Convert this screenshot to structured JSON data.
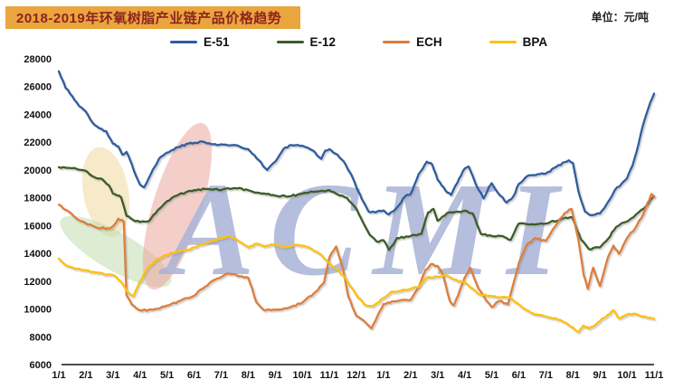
{
  "header": {
    "title": "2018-2019年环氧树脂产业链产品价格趋势",
    "unit_label": "单位：元/吨",
    "title_bg_color": "#e9a53e",
    "title_text_color": "#8e2320"
  },
  "watermark": {
    "text": "ACMI",
    "color": "#a9b3d7"
  },
  "decorations": {
    "petal_yellow": "#f0d9a0",
    "leaf_green": "#bcd9a5",
    "ribbon_pink": "#eba89e"
  },
  "chart_data": {
    "type": "line",
    "title": "2018-2019年环氧树脂产业链产品价格趋势",
    "unit": "元/吨",
    "grid": false,
    "legend_position": "top",
    "xlabel": "",
    "ylabel": "",
    "ylim": [
      6000,
      28000
    ],
    "y_tick_step": 2000,
    "y_ticks": [
      28000,
      26000,
      24000,
      22000,
      20000,
      18000,
      16000,
      14000,
      12000,
      10000,
      8000,
      6000
    ],
    "x_tick_labels": [
      "1/1",
      "2/1",
      "3/1",
      "4/1",
      "5/1",
      "6/1",
      "7/1",
      "8/1",
      "9/1",
      "10/1",
      "11/1",
      "12/1",
      "1/1",
      "2/1",
      "3/1",
      "4/1",
      "5/1",
      "6/1",
      "7/1",
      "8/1",
      "9/1",
      "10/1",
      "11/1"
    ],
    "x_note": "month index 0 = 2018-01-01, 22 = 2019-11-01; series points are [month_index, price]",
    "series": [
      {
        "name": "E-51",
        "color": "#2d5d9f",
        "points": [
          [
            0,
            27100
          ],
          [
            0.25,
            25900
          ],
          [
            0.5,
            25300
          ],
          [
            0.75,
            24600
          ],
          [
            1,
            24200
          ],
          [
            1.25,
            23400
          ],
          [
            1.5,
            23000
          ],
          [
            1.75,
            22800
          ],
          [
            2,
            21900
          ],
          [
            2.2,
            21700
          ],
          [
            2.35,
            21100
          ],
          [
            2.5,
            21300
          ],
          [
            2.7,
            20400
          ],
          [
            2.85,
            19600
          ],
          [
            3,
            18950
          ],
          [
            3.15,
            18750
          ],
          [
            3.4,
            19700
          ],
          [
            3.7,
            20800
          ],
          [
            4,
            21250
          ],
          [
            4.4,
            21650
          ],
          [
            4.8,
            21900
          ],
          [
            5,
            21950
          ],
          [
            5.3,
            22050
          ],
          [
            5.7,
            21850
          ],
          [
            6,
            21850
          ],
          [
            6.5,
            21800
          ],
          [
            7,
            21500
          ],
          [
            7.4,
            20700
          ],
          [
            7.7,
            20000
          ],
          [
            8,
            20600
          ],
          [
            8.3,
            21500
          ],
          [
            8.6,
            21800
          ],
          [
            9,
            21750
          ],
          [
            9.4,
            21400
          ],
          [
            9.7,
            20800
          ],
          [
            9.85,
            21400
          ],
          [
            10,
            21500
          ],
          [
            10.3,
            21100
          ],
          [
            10.6,
            20400
          ],
          [
            10.8,
            19700
          ],
          [
            11,
            18750
          ],
          [
            11.2,
            17900
          ],
          [
            11.45,
            17000
          ],
          [
            11.7,
            16950
          ],
          [
            12,
            17100
          ],
          [
            12.2,
            16800
          ],
          [
            12.5,
            17300
          ],
          [
            12.8,
            18100
          ],
          [
            13,
            18250
          ],
          [
            13.3,
            19700
          ],
          [
            13.6,
            20600
          ],
          [
            13.8,
            20400
          ],
          [
            14,
            19300
          ],
          [
            14.3,
            18500
          ],
          [
            14.5,
            18200
          ],
          [
            14.8,
            19400
          ],
          [
            15,
            20100
          ],
          [
            15.15,
            20250
          ],
          [
            15.45,
            18800
          ],
          [
            15.7,
            17950
          ],
          [
            15.9,
            18800
          ],
          [
            16,
            19050
          ],
          [
            16.25,
            18300
          ],
          [
            16.55,
            17650
          ],
          [
            16.8,
            18100
          ],
          [
            17,
            19000
          ],
          [
            17.3,
            19550
          ],
          [
            17.7,
            19700
          ],
          [
            18,
            19750
          ],
          [
            18.4,
            20250
          ],
          [
            18.85,
            20700
          ],
          [
            19,
            20500
          ],
          [
            19.2,
            18500
          ],
          [
            19.45,
            17000
          ],
          [
            19.65,
            16750
          ],
          [
            20,
            16870
          ],
          [
            20.3,
            17700
          ],
          [
            20.55,
            18550
          ],
          [
            20.8,
            19000
          ],
          [
            21,
            19400
          ],
          [
            21.2,
            20300
          ],
          [
            21.35,
            21300
          ],
          [
            21.5,
            22500
          ],
          [
            21.65,
            23600
          ],
          [
            21.8,
            24500
          ],
          [
            21.92,
            25100
          ],
          [
            22,
            25500
          ]
        ]
      },
      {
        "name": "E-12",
        "color": "#3d5b27",
        "points": [
          [
            0,
            20200
          ],
          [
            0.4,
            20150
          ],
          [
            0.8,
            20000
          ],
          [
            1,
            19950
          ],
          [
            1.3,
            19500
          ],
          [
            1.6,
            19350
          ],
          [
            1.85,
            18900
          ],
          [
            2,
            18300
          ],
          [
            2.3,
            18050
          ],
          [
            2.5,
            16700
          ],
          [
            2.75,
            16400
          ],
          [
            3,
            16250
          ],
          [
            3.35,
            16350
          ],
          [
            3.65,
            17100
          ],
          [
            4,
            17750
          ],
          [
            4.35,
            18150
          ],
          [
            4.7,
            18400
          ],
          [
            5,
            18550
          ],
          [
            5.5,
            18650
          ],
          [
            6,
            18550
          ],
          [
            6.5,
            18700
          ],
          [
            7,
            18550
          ],
          [
            7.5,
            18300
          ],
          [
            8,
            18150
          ],
          [
            8.5,
            18100
          ],
          [
            9,
            18300
          ],
          [
            9.5,
            18450
          ],
          [
            10,
            18550
          ],
          [
            10.3,
            18250
          ],
          [
            10.65,
            18000
          ],
          [
            11,
            17200
          ],
          [
            11.25,
            16200
          ],
          [
            11.5,
            15300
          ],
          [
            11.75,
            14850
          ],
          [
            12,
            14950
          ],
          [
            12.2,
            14250
          ],
          [
            12.5,
            15100
          ],
          [
            13,
            15250
          ],
          [
            13.4,
            15400
          ],
          [
            13.65,
            16950
          ],
          [
            13.85,
            17200
          ],
          [
            14,
            16350
          ],
          [
            14.35,
            16900
          ],
          [
            14.7,
            17000
          ],
          [
            15,
            17070
          ],
          [
            15.3,
            16870
          ],
          [
            15.6,
            15400
          ],
          [
            16,
            15250
          ],
          [
            16.4,
            15250
          ],
          [
            16.7,
            14960
          ],
          [
            16.9,
            15800
          ],
          [
            17,
            16150
          ],
          [
            17.5,
            16100
          ],
          [
            18,
            16150
          ],
          [
            18.5,
            16400
          ],
          [
            18.9,
            16600
          ],
          [
            19,
            16500
          ],
          [
            19.3,
            15000
          ],
          [
            19.6,
            14300
          ],
          [
            20,
            14430
          ],
          [
            20.3,
            15050
          ],
          [
            20.6,
            15900
          ],
          [
            21,
            16300
          ],
          [
            21.4,
            16900
          ],
          [
            21.7,
            17400
          ],
          [
            22,
            18100
          ]
        ]
      },
      {
        "name": "ECH",
        "color": "#dd7e3a",
        "points": [
          [
            0,
            17500
          ],
          [
            0.3,
            17100
          ],
          [
            0.6,
            16600
          ],
          [
            1,
            16150
          ],
          [
            1.4,
            15850
          ],
          [
            1.8,
            15800
          ],
          [
            2,
            15950
          ],
          [
            2.2,
            16500
          ],
          [
            2.4,
            16300
          ],
          [
            2.5,
            11000
          ],
          [
            2.7,
            10300
          ],
          [
            3,
            9900
          ],
          [
            3.5,
            9950
          ],
          [
            4,
            10250
          ],
          [
            4.5,
            10600
          ],
          [
            5,
            10950
          ],
          [
            5.4,
            11600
          ],
          [
            5.7,
            12050
          ],
          [
            6,
            12300
          ],
          [
            6.3,
            12550
          ],
          [
            6.7,
            12350
          ],
          [
            7,
            12250
          ],
          [
            7.3,
            10500
          ],
          [
            7.6,
            9900
          ],
          [
            8,
            9950
          ],
          [
            8.5,
            10100
          ],
          [
            9,
            10450
          ],
          [
            9.5,
            11250
          ],
          [
            9.8,
            11900
          ],
          [
            10,
            13700
          ],
          [
            10.25,
            14500
          ],
          [
            10.5,
            12900
          ],
          [
            10.7,
            10900
          ],
          [
            11,
            9500
          ],
          [
            11.3,
            9100
          ],
          [
            11.55,
            8600
          ],
          [
            11.8,
            9600
          ],
          [
            12,
            10350
          ],
          [
            12.4,
            10550
          ],
          [
            13,
            10650
          ],
          [
            13.3,
            11600
          ],
          [
            13.55,
            12800
          ],
          [
            13.75,
            13230
          ],
          [
            14,
            13100
          ],
          [
            14.2,
            12450
          ],
          [
            14.45,
            10590
          ],
          [
            14.6,
            10260
          ],
          [
            15,
            12250
          ],
          [
            15.2,
            12980
          ],
          [
            15.5,
            11500
          ],
          [
            15.8,
            10590
          ],
          [
            16,
            10130
          ],
          [
            16.3,
            10590
          ],
          [
            16.6,
            10330
          ],
          [
            16.9,
            12500
          ],
          [
            17,
            13300
          ],
          [
            17.3,
            14630
          ],
          [
            17.6,
            15100
          ],
          [
            18,
            14900
          ],
          [
            18.35,
            15950
          ],
          [
            18.7,
            16900
          ],
          [
            18.95,
            17200
          ],
          [
            19.2,
            15000
          ],
          [
            19.4,
            12450
          ],
          [
            19.55,
            11450
          ],
          [
            19.75,
            12980
          ],
          [
            20,
            11650
          ],
          [
            20.3,
            13760
          ],
          [
            20.5,
            14560
          ],
          [
            20.7,
            13960
          ],
          [
            21,
            15100
          ],
          [
            21.3,
            15800
          ],
          [
            21.6,
            16800
          ],
          [
            21.9,
            18270
          ],
          [
            22,
            18100
          ]
        ]
      },
      {
        "name": "BPA",
        "color": "#fdc108",
        "points": [
          [
            0,
            13630
          ],
          [
            0.3,
            13100
          ],
          [
            0.6,
            12900
          ],
          [
            1,
            12780
          ],
          [
            1.5,
            12600
          ],
          [
            2,
            12450
          ],
          [
            2.3,
            11980
          ],
          [
            2.55,
            11200
          ],
          [
            2.75,
            10920
          ],
          [
            3,
            11980
          ],
          [
            3.3,
            12980
          ],
          [
            3.6,
            13560
          ],
          [
            4,
            13890
          ],
          [
            4.35,
            14100
          ],
          [
            4.7,
            14230
          ],
          [
            5,
            14430
          ],
          [
            5.4,
            14700
          ],
          [
            5.7,
            14900
          ],
          [
            6,
            15050
          ],
          [
            6.2,
            15230
          ],
          [
            6.5,
            15100
          ],
          [
            7,
            14430
          ],
          [
            7.3,
            14700
          ],
          [
            7.6,
            14500
          ],
          [
            8,
            14650
          ],
          [
            8.35,
            14450
          ],
          [
            8.7,
            14600
          ],
          [
            9,
            14560
          ],
          [
            9.35,
            14300
          ],
          [
            9.7,
            13900
          ],
          [
            10,
            13300
          ],
          [
            10.3,
            12800
          ],
          [
            10.6,
            12200
          ],
          [
            11,
            11000
          ],
          [
            11.3,
            10300
          ],
          [
            11.6,
            10200
          ],
          [
            12,
            10790
          ],
          [
            12.3,
            11250
          ],
          [
            12.65,
            11320
          ],
          [
            13,
            11450
          ],
          [
            13.3,
            11580
          ],
          [
            13.6,
            12250
          ],
          [
            14,
            12320
          ],
          [
            14.3,
            12450
          ],
          [
            14.6,
            12120
          ],
          [
            15,
            11920
          ],
          [
            15.3,
            11450
          ],
          [
            15.6,
            11000
          ],
          [
            16,
            10920
          ],
          [
            16.35,
            10850
          ],
          [
            16.7,
            10790
          ],
          [
            17,
            10330
          ],
          [
            17.3,
            9900
          ],
          [
            17.6,
            9600
          ],
          [
            18,
            9460
          ],
          [
            18.3,
            9330
          ],
          [
            18.6,
            9130
          ],
          [
            19,
            8680
          ],
          [
            19.2,
            8340
          ],
          [
            19.4,
            8810
          ],
          [
            19.6,
            8610
          ],
          [
            20,
            9130
          ],
          [
            20.3,
            9590
          ],
          [
            20.5,
            9920
          ],
          [
            20.7,
            9330
          ],
          [
            21,
            9590
          ],
          [
            21.3,
            9660
          ],
          [
            21.6,
            9460
          ],
          [
            22,
            9300
          ]
        ]
      }
    ]
  }
}
